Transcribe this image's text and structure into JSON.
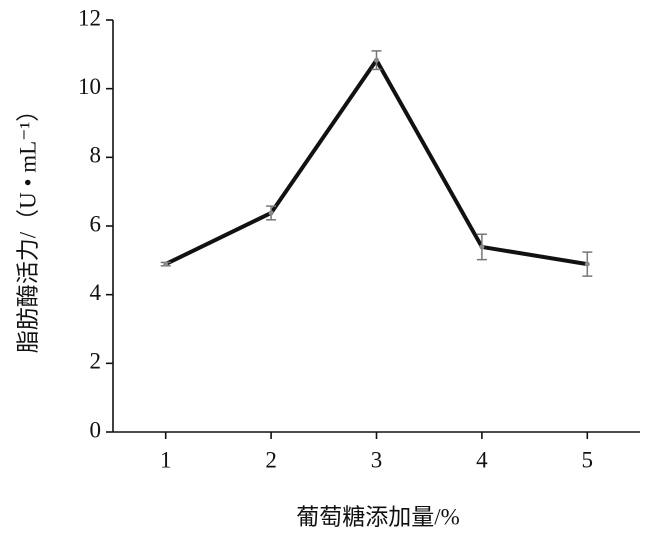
{
  "chart_data": {
    "type": "line",
    "x_label": "葡萄糖添加量/%",
    "y_label": "脂肪酶活力/（U • mL⁻¹）",
    "x": [
      1,
      2,
      3,
      4,
      5
    ],
    "series": [
      {
        "color": "#111111",
        "values": [
          4.89,
          6.38,
          10.83,
          5.39,
          4.89
        ],
        "errors": [
          0.05,
          0.2,
          0.27,
          0.37,
          0.35
        ]
      }
    ],
    "xlim": [
      0.5,
      5.5
    ],
    "xticks": [
      1,
      2,
      3,
      4,
      5
    ],
    "ylim": [
      0,
      12
    ],
    "yticks": [
      0,
      2,
      4,
      6,
      8,
      10,
      12
    ],
    "grid": false
  }
}
